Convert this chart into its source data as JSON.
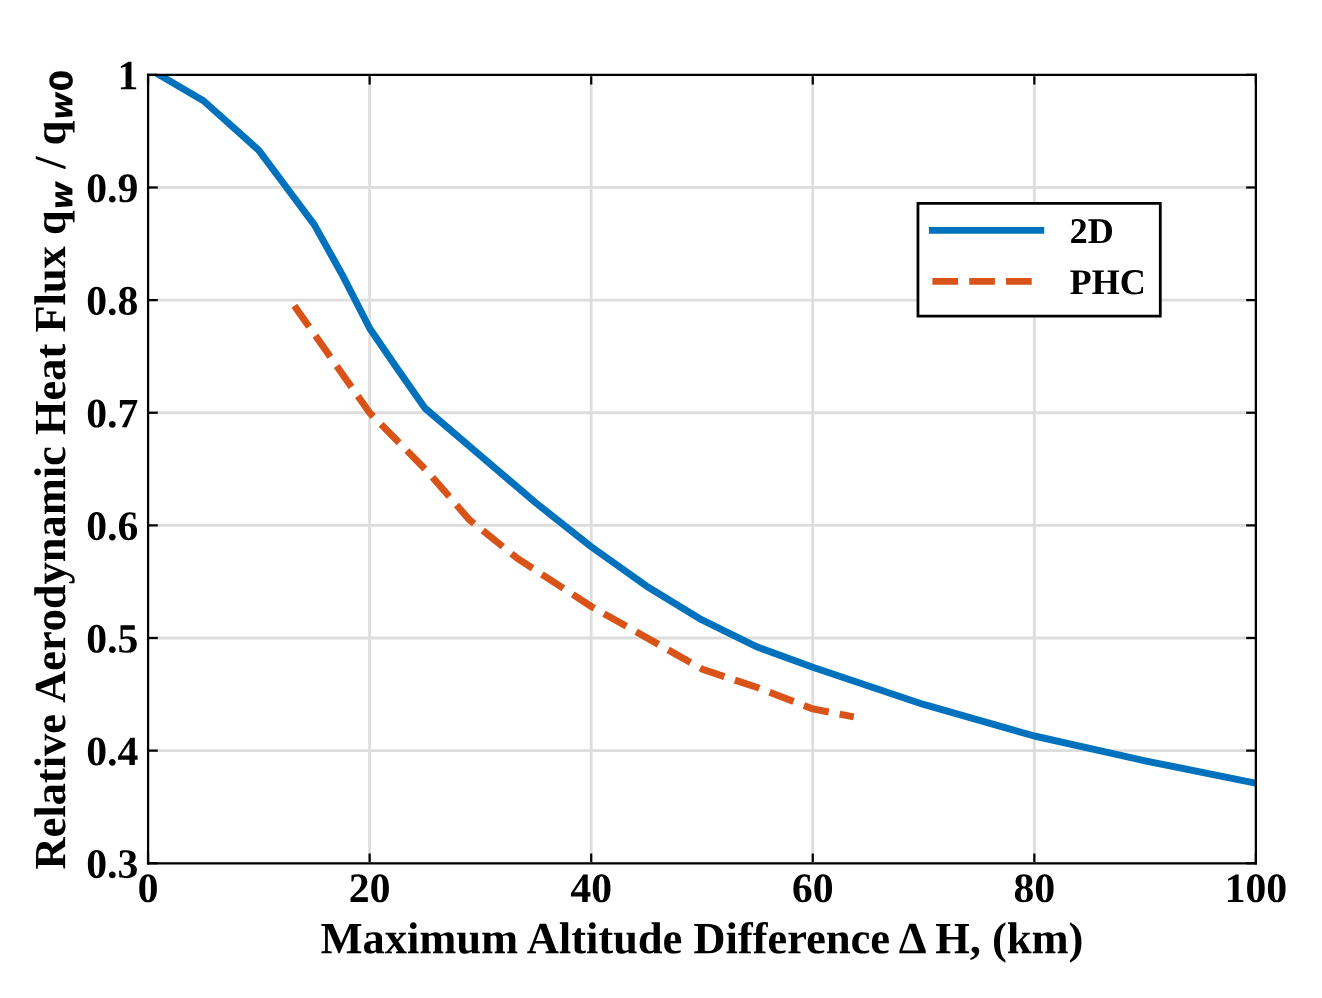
{
  "chart_data": {
    "type": "line",
    "xlabel": "Maximum Altitude Difference Δ H, (km)",
    "ylabel": "Relative Aerodynamic Heat Flux q$_{w}$ / q$_{w0}$",
    "xlim": [
      0,
      100
    ],
    "ylim": [
      0.3,
      1
    ],
    "xticks": [
      0,
      20,
      40,
      60,
      80,
      100
    ],
    "yticks": [
      0.3,
      0.4,
      0.5,
      0.6,
      0.7,
      0.8,
      0.9,
      1
    ],
    "grid": true,
    "legend": "top right",
    "line_style": "solid",
    "series": [
      {
        "name": "2D",
        "color": "#0072bd",
        "x": [
          1,
          5,
          10,
          12.5,
          15,
          17.5,
          20,
          22.5,
          25,
          30,
          35,
          40,
          45,
          50,
          55,
          60,
          70,
          80,
          90,
          100
        ],
        "values": [
          1.0,
          0.977,
          0.933,
          0.9,
          0.867,
          0.823,
          0.775,
          0.739,
          0.704,
          0.662,
          0.62,
          0.581,
          0.546,
          0.516,
          0.492,
          0.474,
          0.441,
          0.413,
          0.391,
          0.371
        ]
      },
      {
        "name": "PHC",
        "color": "#d95319",
        "line_style": "dashed",
        "x": [
          13.2,
          20,
          25.3,
          29,
          33.3,
          40,
          50.1,
          55,
          60,
          63.7
        ],
        "values": [
          0.795,
          0.7,
          0.647,
          0.605,
          0.571,
          0.528,
          0.472,
          0.456,
          0.437,
          0.43
        ]
      }
    ]
  }
}
